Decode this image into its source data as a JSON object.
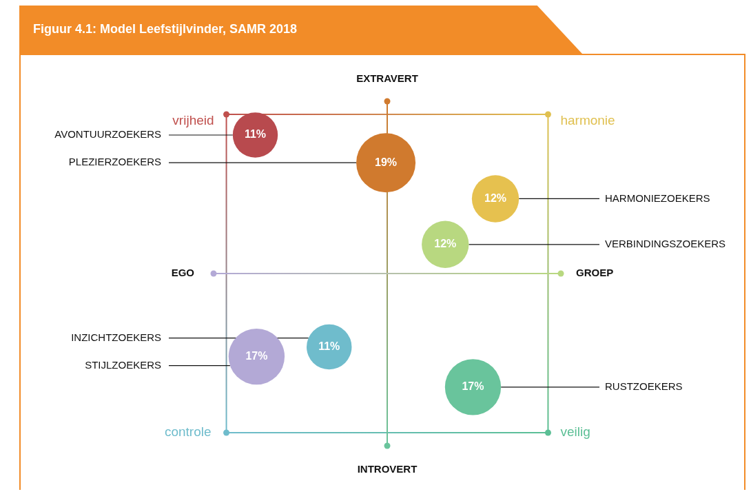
{
  "chart_data": {
    "type": "other",
    "title": "Figuur 4.1: Model Leefstijlvinder, SAMR 2018",
    "categories": [
      "AVONTUURZOEKERS",
      "PLEZIERZOEKERS",
      "HARMONIEZOEKERS",
      "VERBINDINGSZOEKERS",
      "INZICHTZOEKERS",
      "STIJLZOEKERS",
      "RUSTZOEKERS"
    ],
    "values": [
      11,
      19,
      12,
      12,
      11,
      17,
      17
    ],
    "value_labels": [
      "11%",
      "19%",
      "12%",
      "12%",
      "11%",
      "17%",
      "17%"
    ],
    "colors": [
      "#b84a4e",
      "#d07a2e",
      "#e6c14f",
      "#b8d880",
      "#6fbccc",
      "#b3a9d6",
      "#69c49c"
    ],
    "annotations": [
      "EXTRAVERT",
      "INTROVERT",
      "EGO",
      "GROEP",
      "vrijheid",
      "harmonie",
      "controle",
      "veilig"
    ]
  }
}
